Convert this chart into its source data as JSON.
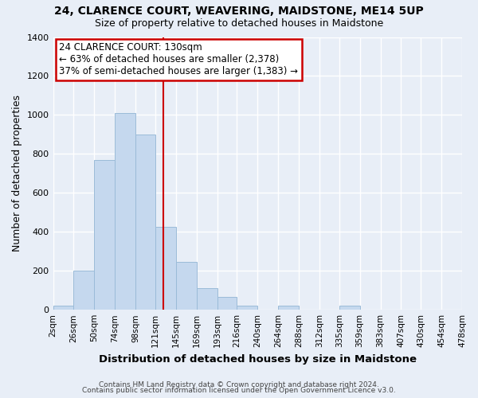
{
  "title": "24, CLARENCE COURT, WEAVERING, MAIDSTONE, ME14 5UP",
  "subtitle": "Size of property relative to detached houses in Maidstone",
  "xlabel": "Distribution of detached houses by size in Maidstone",
  "ylabel": "Number of detached properties",
  "bar_color": "#c5d8ee",
  "bar_edge_color": "#9bbbd8",
  "background_color": "#e8eef7",
  "bin_edges": [
    2,
    26,
    50,
    74,
    98,
    121,
    145,
    169,
    193,
    216,
    240,
    264,
    288,
    312,
    335,
    359,
    383,
    407,
    430,
    454,
    478
  ],
  "bin_labels": [
    "2sqm",
    "26sqm",
    "50sqm",
    "74sqm",
    "98sqm",
    "121sqm",
    "145sqm",
    "169sqm",
    "193sqm",
    "216sqm",
    "240sqm",
    "264sqm",
    "288sqm",
    "312sqm",
    "335sqm",
    "359sqm",
    "383sqm",
    "407sqm",
    "430sqm",
    "454sqm",
    "478sqm"
  ],
  "counts": [
    20,
    200,
    770,
    1010,
    900,
    425,
    245,
    110,
    65,
    20,
    0,
    20,
    0,
    0,
    20,
    0,
    0,
    0,
    0,
    0
  ],
  "ylim": [
    0,
    1400
  ],
  "yticks": [
    0,
    200,
    400,
    600,
    800,
    1000,
    1200,
    1400
  ],
  "property_line_x": 130,
  "annotation_title": "24 CLARENCE COURT: 130sqm",
  "annotation_line1": "← 63% of detached houses are smaller (2,378)",
  "annotation_line2": "37% of semi-detached houses are larger (1,383) →",
  "annotation_box_color": "#ffffff",
  "annotation_box_edge": "#cc0000",
  "vline_color": "#cc0000",
  "footer_line1": "Contains HM Land Registry data © Crown copyright and database right 2024.",
  "footer_line2": "Contains public sector information licensed under the Open Government Licence v3.0.",
  "title_fontsize": 10,
  "subtitle_fontsize": 9,
  "axis_label_fontsize": 9,
  "tick_fontsize": 7.5,
  "annotation_fontsize": 8.5,
  "footer_fontsize": 6.5
}
